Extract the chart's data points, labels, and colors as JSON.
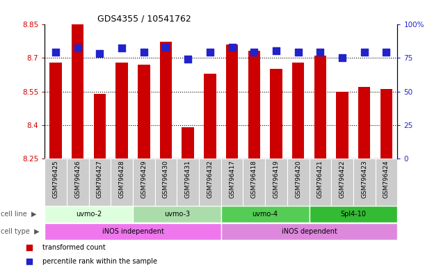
{
  "title": "GDS4355 / 10541762",
  "samples": [
    "GSM796425",
    "GSM796426",
    "GSM796427",
    "GSM796428",
    "GSM796429",
    "GSM796430",
    "GSM796431",
    "GSM796432",
    "GSM796417",
    "GSM796418",
    "GSM796419",
    "GSM796420",
    "GSM796421",
    "GSM796422",
    "GSM796423",
    "GSM796424"
  ],
  "transformed_count": [
    8.68,
    8.85,
    8.54,
    8.68,
    8.67,
    8.77,
    8.39,
    8.63,
    8.76,
    8.73,
    8.65,
    8.68,
    8.71,
    8.55,
    8.57,
    8.56
  ],
  "percentile_rank": [
    79,
    82,
    78,
    82,
    79,
    83,
    74,
    79,
    83,
    79,
    80,
    79,
    79,
    75,
    79,
    79
  ],
  "ylim_left": [
    8.25,
    8.85
  ],
  "ylim_right": [
    0,
    100
  ],
  "yticks_left": [
    8.25,
    8.4,
    8.55,
    8.7,
    8.85
  ],
  "yticks_right": [
    0,
    25,
    50,
    75,
    100
  ],
  "bar_color": "#cc0000",
  "dot_color": "#2222cc",
  "cell_line_groups": [
    {
      "label": "uvmo-2",
      "start": 0,
      "end": 4,
      "color": "#ddffdd"
    },
    {
      "label": "uvmo-3",
      "start": 4,
      "end": 8,
      "color": "#aaddaa"
    },
    {
      "label": "uvmo-4",
      "start": 8,
      "end": 12,
      "color": "#55cc55"
    },
    {
      "label": "Spl4-10",
      "start": 12,
      "end": 16,
      "color": "#33bb33"
    }
  ],
  "cell_type_groups": [
    {
      "label": "iNOS independent",
      "start": 0,
      "end": 8,
      "color": "#ee77ee"
    },
    {
      "label": "iNOS dependent",
      "start": 8,
      "end": 16,
      "color": "#dd88dd"
    }
  ],
  "legend_items": [
    {
      "label": "transformed count",
      "color": "#cc0000"
    },
    {
      "label": "percentile rank within the sample",
      "color": "#2222cc"
    }
  ],
  "left_axis_color": "#cc0000",
  "right_axis_color": "#2222cc",
  "bar_bottom": 8.25,
  "bar_width": 0.55,
  "dot_size": 45,
  "grid_yticks": [
    8.4,
    8.55,
    8.7
  ],
  "label_fontsize": 7,
  "tick_fontsize": 7.5,
  "sample_fontsize": 6.5
}
